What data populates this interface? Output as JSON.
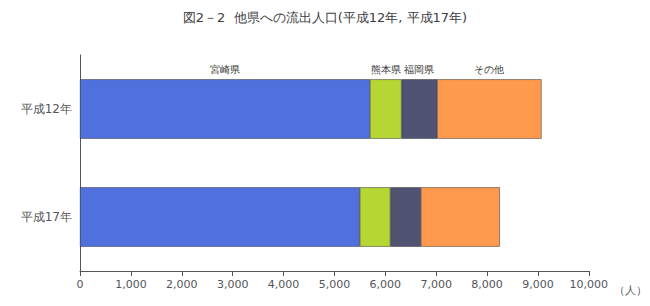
{
  "chart_data": {
    "type": "bar",
    "orientation": "horizontal",
    "stacked": true,
    "title": "図2－2  他県への流出人口(平成12年, 平成17年)",
    "categories": [
      "平成12年",
      "平成17年"
    ],
    "series": [
      {
        "name": "宮崎県",
        "values": [
          5700,
          5500
        ]
      },
      {
        "name": "熊本県",
        "values": [
          620,
          600
        ]
      },
      {
        "name": "福岡県",
        "values": [
          700,
          600
        ]
      },
      {
        "name": "その他",
        "values": [
          2050,
          1550
        ]
      }
    ],
    "xlabel": "（人）",
    "xlim": [
      0,
      10000
    ],
    "xticks": [
      0,
      {
        "value": 1000,
        "label": "1,000"
      },
      {
        "value": 2000,
        "label": "2,000"
      },
      {
        "value": 3000,
        "label": "3,000"
      },
      {
        "value": 4000,
        "label": "4,000"
      },
      {
        "value": 5000,
        "label": "5,000"
      },
      {
        "value": 6000,
        "label": "6,000"
      },
      {
        "value": 7000,
        "label": "7,000"
      },
      {
        "value": 8000,
        "label": "8,000"
      },
      {
        "value": 9000,
        "label": "9,000"
      },
      {
        "value": 10000,
        "label": "10,000"
      }
    ],
    "grid": false
  }
}
